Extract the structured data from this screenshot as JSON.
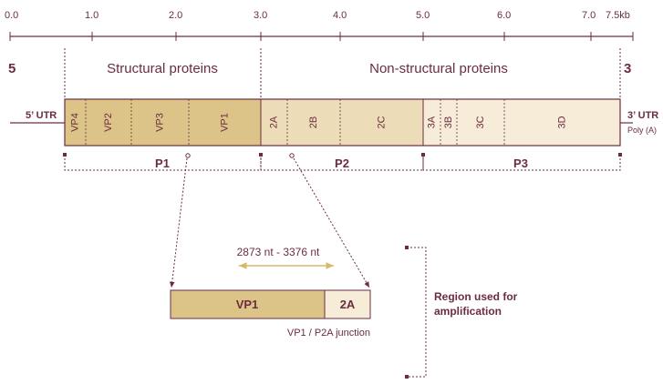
{
  "scale": {
    "ticks": [
      "0.0",
      "1.0",
      "2.0",
      "3.0",
      "4.0",
      "5.0",
      "6.0",
      "7.0",
      "7.5kb"
    ]
  },
  "ends": {
    "five_prime": "5",
    "three_prime": "3"
  },
  "regions": {
    "structural": "Structural proteins",
    "non_structural": "Non-structural proteins"
  },
  "utr": {
    "five": "5’ UTR",
    "three": "3’ UTR",
    "poly": "Poly (A)"
  },
  "genes": [
    {
      "label": "VP4",
      "fill": "#dcc488",
      "group": "P1"
    },
    {
      "label": "VP2",
      "fill": "#dcc488",
      "group": "P1"
    },
    {
      "label": "VP3",
      "fill": "#dcc488",
      "group": "P1"
    },
    {
      "label": "VP1",
      "fill": "#dcc488",
      "group": "P1"
    },
    {
      "label": "2A",
      "fill": "#ecdcb8",
      "group": "P2"
    },
    {
      "label": "2B",
      "fill": "#ecdcb8",
      "group": "P2"
    },
    {
      "label": "2C",
      "fill": "#ecdcb8",
      "group": "P2"
    },
    {
      "label": "3A",
      "fill": "#f6ecd8",
      "group": "P3"
    },
    {
      "label": "3B",
      "fill": "#f6ecd8",
      "group": "P3"
    },
    {
      "label": "3C",
      "fill": "#f6ecd8",
      "group": "P3"
    },
    {
      "label": "3D",
      "fill": "#f6ecd8",
      "group": "P3"
    }
  ],
  "polyproteins": [
    "P1",
    "P2",
    "P3"
  ],
  "zoom": {
    "range_label": "2873 nt - 3376 nt",
    "vp1": "VP1",
    "p2a": "2A",
    "caption": "VP1 / P2A junction"
  },
  "note": {
    "line1": "Region used for",
    "line2": "amplification"
  },
  "colors": {
    "ink": "#6b2d3f",
    "structural": "#dcc488",
    "p2": "#ecdcb8",
    "p3": "#f6ecd8",
    "range_arrow": "#d9b86a"
  }
}
